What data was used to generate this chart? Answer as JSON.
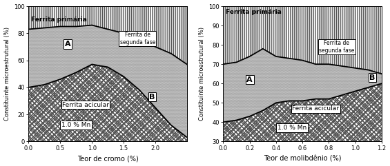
{
  "chart1": {
    "xlabel": "Teor de cromo (%)",
    "ylabel": "Constituinte microestrutural (%)",
    "ylim": [
      0,
      100
    ],
    "xlim": [
      0.0,
      2.5
    ],
    "yticks": [
      0,
      20,
      40,
      60,
      80,
      100
    ],
    "xticks": [
      0.0,
      0.5,
      1.0,
      1.5,
      2.0
    ],
    "xtick_labels": [
      "0.0",
      "0.5",
      "1.0",
      "1.5",
      "2.0"
    ],
    "note": "1.0 % Mn",
    "label_A": "A",
    "label_B": "B",
    "label_fp": "Ferrita primária",
    "label_fsf": "Ferrita de\nsegunda fase",
    "label_fa": "Ferrita acicular",
    "x": [
      0.0,
      0.25,
      0.5,
      0.75,
      1.0,
      1.25,
      1.5,
      1.75,
      2.0,
      2.25,
      2.5
    ],
    "curve_A": [
      83,
      84,
      85,
      85,
      86,
      83,
      80,
      75,
      70,
      65,
      57
    ],
    "curve_B": [
      40,
      42,
      46,
      51,
      57,
      55,
      48,
      38,
      25,
      12,
      3
    ]
  },
  "chart2": {
    "xlabel": "Teor de molibdênio (%)",
    "ylabel": "Constituinte microestrutural (%)",
    "ylim": [
      30,
      100
    ],
    "xlim": [
      0.0,
      1.2
    ],
    "yticks": [
      30,
      40,
      50,
      60,
      70,
      80,
      90,
      100
    ],
    "xticks": [
      0.0,
      0.2,
      0.4,
      0.6,
      0.8,
      1.0,
      1.2
    ],
    "xtick_labels": [
      "0.0",
      "0.2",
      "0.4",
      "0.6",
      "0.8",
      "1.0",
      "1.2"
    ],
    "note": "1.0 % Mn",
    "label_A": "A",
    "label_B": "B",
    "label_fp": "Ferrita primária",
    "label_fsf": "Ferrita de\nsegunda fase",
    "label_fa": "Ferrita acicular",
    "x": [
      0.0,
      0.1,
      0.2,
      0.3,
      0.4,
      0.5,
      0.6,
      0.7,
      0.8,
      0.9,
      1.0,
      1.1,
      1.2
    ],
    "curve_A": [
      70,
      71,
      74,
      78,
      74,
      73,
      72,
      70,
      70,
      69,
      68,
      67,
      65
    ],
    "curve_B": [
      40,
      41,
      43,
      46,
      50,
      51,
      51,
      52,
      52,
      54,
      56,
      58,
      60
    ]
  },
  "hatch_top": "|||||||",
  "hatch_mid": "....",
  "hatch_bot": "////\\\\\\\\",
  "color_top_face": "white",
  "color_mid_face": "#cccccc",
  "color_bot_face": "white",
  "color_edge": "#555555",
  "lw_boundary": 1.3,
  "fontsize_label": 6.5,
  "fontsize_AB": 8,
  "fontsize_note": 6.5,
  "fontsize_tick": 6,
  "fontsize_xlabel": 7,
  "fontsize_ylabel": 6
}
